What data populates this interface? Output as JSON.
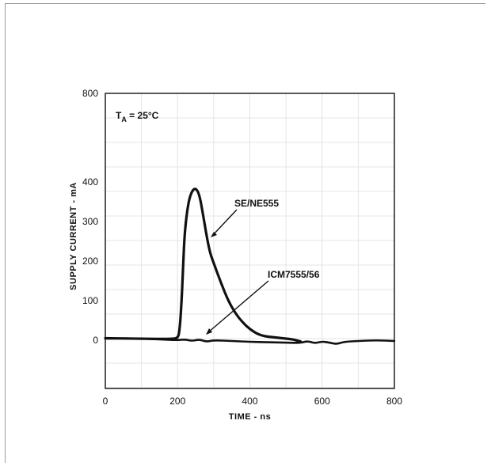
{
  "chart_data": {
    "type": "line",
    "xlabel": "TIME - ns",
    "ylabel": "SUPPLY CURRENT - mA",
    "xlim": [
      0,
      800
    ],
    "ylim": [
      -100,
      800
    ],
    "x_ticks": [
      "0",
      "200",
      "400",
      "600",
      "800"
    ],
    "y_ticks": [
      "800",
      "400",
      "300",
      "200",
      "100",
      "0"
    ],
    "y_scale_note": "axis is non-linear: 800 at top, then 400, 300, 200, 100, 0 evenly spaced",
    "annotations": {
      "condition": "T",
      "condition_sub": "A",
      "condition_value": " = 25°C"
    },
    "series": [
      {
        "name": "SE/NE555",
        "x": [
          0,
          100,
          180,
          200,
          205,
          210,
          215,
          220,
          230,
          240,
          250,
          260,
          270,
          280,
          290,
          300,
          320,
          340,
          360,
          380,
          400,
          420,
          440,
          460,
          480,
          500,
          520,
          540
        ],
        "values": [
          5,
          4,
          3,
          5,
          20,
          80,
          180,
          280,
          350,
          378,
          385,
          370,
          320,
          265,
          220,
          195,
          145,
          100,
          68,
          45,
          28,
          16,
          10,
          8,
          6,
          4,
          2,
          -3
        ]
      },
      {
        "name": "ICM7555/56",
        "x": [
          0,
          50,
          100,
          150,
          200,
          220,
          240,
          260,
          280,
          300,
          350,
          400,
          450,
          500,
          540,
          560,
          580,
          600,
          620,
          640,
          660,
          700,
          750,
          800
        ],
        "values": [
          4,
          5,
          4,
          2,
          0,
          2,
          -2,
          2,
          -4,
          0,
          -2,
          -4,
          -5,
          -6,
          -7,
          -2,
          -8,
          -3,
          -6,
          -10,
          -4,
          -2,
          0,
          -2
        ]
      }
    ]
  }
}
